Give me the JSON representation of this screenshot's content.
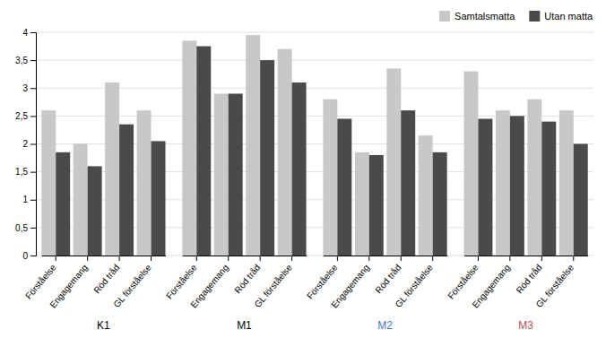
{
  "chart_data": {
    "type": "bar",
    "categories": [
      "Förståelse",
      "Engagemang",
      "Röd tråd",
      "GL förståelse",
      "Förståelse",
      "Engagemang",
      "Röd tråd",
      "GL förståelse",
      "Förståelse",
      "Engagemang",
      "Röd tråd",
      "GL förståelse",
      "Förståelse",
      "Engagemang",
      "Röd tråd",
      "GL förståelse"
    ],
    "groups": [
      {
        "label": "K1",
        "color": "#000000"
      },
      {
        "label": "M1",
        "color": "#000000"
      },
      {
        "label": "M2",
        "color": "#4472c4"
      },
      {
        "label": "M3",
        "color": "#c0504d"
      }
    ],
    "series": [
      {
        "name": "Samtalsmatta",
        "color": "#c8c8c8",
        "values": [
          2.6,
          2.0,
          3.1,
          2.6,
          3.85,
          2.9,
          3.95,
          3.7,
          2.8,
          1.85,
          3.35,
          2.15,
          3.3,
          2.6,
          2.8,
          2.6
        ]
      },
      {
        "name": "Utan matta",
        "color": "#4a4a4a",
        "values": [
          1.85,
          1.6,
          2.35,
          2.05,
          3.75,
          2.9,
          3.5,
          3.1,
          2.45,
          1.8,
          2.6,
          1.85,
          2.45,
          2.5,
          2.4,
          2.0
        ]
      }
    ],
    "ylim": [
      0,
      4
    ],
    "yticks": [
      0,
      {
        "value": 0.5,
        "label": "0,5"
      },
      1,
      {
        "value": 1.5,
        "label": "1,5"
      },
      2,
      {
        "value": 2.5,
        "label": "2,5"
      },
      3,
      {
        "value": 3.5,
        "label": "3,5"
      },
      4
    ],
    "grid": true,
    "legend": "upper right"
  }
}
